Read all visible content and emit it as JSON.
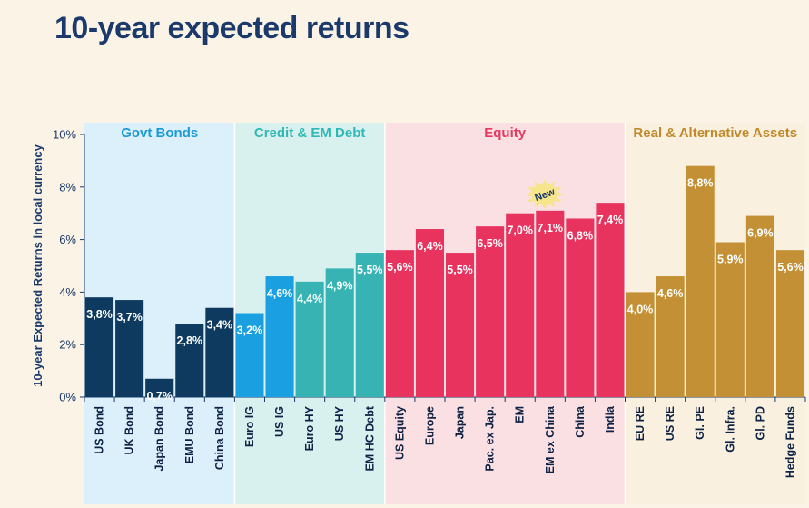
{
  "page": {
    "title": "10-year expected returns"
  },
  "chart_data": {
    "type": "bar",
    "ylabel": "10-year Expected Returns in local currency",
    "ylim": [
      0,
      10
    ],
    "y_ticks": [
      "0%",
      "2%",
      "4%",
      "6%",
      "8%",
      "10%"
    ],
    "y_tick_values": [
      0,
      2,
      4,
      6,
      8,
      10
    ],
    "grid": false,
    "groups": [
      {
        "name": "Govt Bonds",
        "label_color": "#1a9ad6",
        "bg_color": "#dcf0fb",
        "bar_color": "#0f3a5f",
        "categories": [
          "US Bond",
          "UK Bond",
          "Japan Bond",
          "EMU Bond",
          "China Bond"
        ],
        "values": [
          3.8,
          3.7,
          0.7,
          2.8,
          3.4
        ],
        "value_labels": [
          "3,8%",
          "3,7%",
          "0,7%",
          "2,8%",
          "3,4%"
        ]
      },
      {
        "name": "Credit & EM Debt",
        "label_color": "#32b8b4",
        "bg_color": "#d8f1ef",
        "bar_colors": [
          "#1aa0e0",
          "#1aa0e0",
          "#37b3b3",
          "#37b3b3",
          "#37b3b3"
        ],
        "categories": [
          "Euro IG",
          "US IG",
          "Euro HY",
          "US HY",
          "EM HC Debt"
        ],
        "values": [
          3.2,
          4.6,
          4.4,
          4.9,
          5.5
        ],
        "value_labels": [
          "3,2%",
          "4,6%",
          "4,4%",
          "4,9%",
          "5,5%"
        ]
      },
      {
        "name": "Equity",
        "label_color": "#e53a5f",
        "bg_color": "#fbe0e3",
        "bar_color": "#e8335f",
        "categories": [
          "US Equity",
          "Europe",
          "Japan",
          "Pac. ex Jap.",
          "EM",
          "EM ex China",
          "China",
          "India"
        ],
        "values": [
          5.6,
          6.4,
          5.5,
          6.5,
          7.0,
          7.1,
          6.8,
          7.4
        ],
        "value_labels": [
          "5,6%",
          "6,4%",
          "5,5%",
          "6,5%",
          "7,0%",
          "7,1%",
          "6,8%",
          "7,4%"
        ]
      },
      {
        "name": "Real & Alternative Assets",
        "label_color": "#c08a2a",
        "bg_color": "#faf0df",
        "bar_color": "#c49035",
        "categories": [
          "EU RE",
          "US RE",
          "Gl. PE",
          "Gl. Infra.",
          "Gl. PD",
          "Hedge Funds"
        ],
        "values": [
          4.0,
          4.6,
          8.8,
          5.9,
          6.9,
          5.6
        ],
        "value_labels": [
          "4,0%",
          "4,6%",
          "8,8%",
          "5,9%",
          "6,9%",
          "5,6%"
        ]
      }
    ],
    "annotations": [
      {
        "text": "New",
        "category": "EM ex China",
        "badge_color": "#f6e58a"
      }
    ]
  }
}
